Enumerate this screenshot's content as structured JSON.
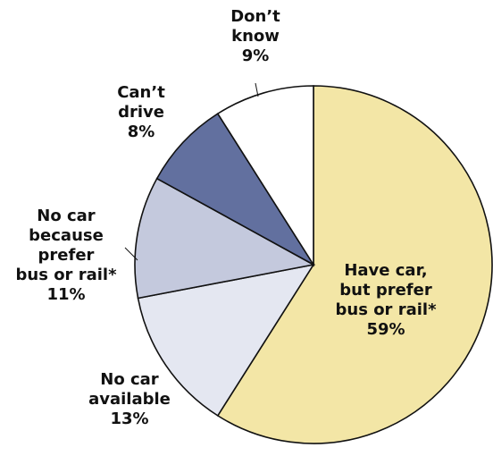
{
  "chart_data": {
    "type": "pie",
    "title": "",
    "slices": [
      {
        "name": "Have car, but prefer bus or rail*",
        "value": 59,
        "percent_label": "59%",
        "label_lines": [
          "Have car,",
          "but prefer",
          "bus or rail*",
          "59%"
        ],
        "color": "#F3E6A6"
      },
      {
        "name": "No car available",
        "value": 13,
        "percent_label": "13%",
        "label_lines": [
          "No car",
          "available",
          "13%"
        ],
        "color": "#E4E7F1"
      },
      {
        "name": "No car because prefer bus or rail*",
        "value": 11,
        "percent_label": "11%",
        "label_lines": [
          "No car",
          "because",
          "prefer",
          "bus or rail*",
          "11%"
        ],
        "color": "#C4C9DD"
      },
      {
        "name": "Can’t drive",
        "value": 8,
        "percent_label": "8%",
        "label_lines": [
          "Can’t",
          "drive",
          "8%"
        ],
        "color": "#62709F"
      },
      {
        "name": "Don’t know",
        "value": 9,
        "percent_label": "9%",
        "label_lines": [
          "Don’t",
          "know",
          "9%"
        ],
        "color": "#FFFFFF"
      }
    ],
    "start_angle_deg": 0,
    "direction": "clockwise",
    "legend": "none"
  }
}
